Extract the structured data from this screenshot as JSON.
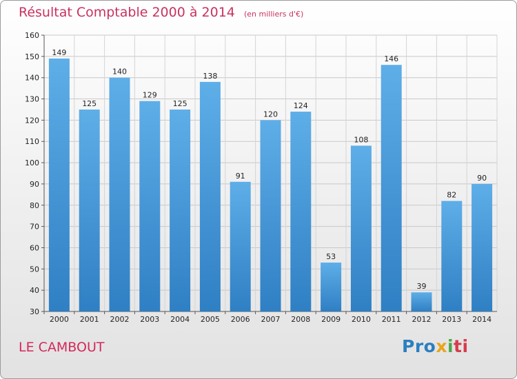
{
  "header": {
    "title": "Résultat Comptable 2000 à 2014",
    "subtitle": "(en milliers d'€)"
  },
  "footer": {
    "city": "LE CAMBOUT",
    "logo": [
      "Pro",
      "x",
      "i",
      "ti"
    ]
  },
  "colors": {
    "bar_top": "#5eaee8",
    "bar_bottom": "#2f7fc4",
    "title": "#c8325f"
  },
  "chart_data": {
    "type": "bar",
    "title": "Résultat Comptable 2000 à 2014",
    "subtitle": "(en milliers d'€)",
    "categories": [
      "2000",
      "2001",
      "2002",
      "2003",
      "2004",
      "2005",
      "2006",
      "2007",
      "2008",
      "2009",
      "2010",
      "2011",
      "2012",
      "2013",
      "2014"
    ],
    "values": [
      149,
      125,
      140,
      129,
      125,
      138,
      91,
      120,
      124,
      53,
      108,
      146,
      39,
      82,
      90
    ],
    "ylim": [
      30,
      160
    ],
    "yticks": [
      30,
      40,
      50,
      60,
      70,
      80,
      90,
      100,
      110,
      120,
      130,
      140,
      150,
      160
    ],
    "grid": true,
    "legend": "none"
  }
}
